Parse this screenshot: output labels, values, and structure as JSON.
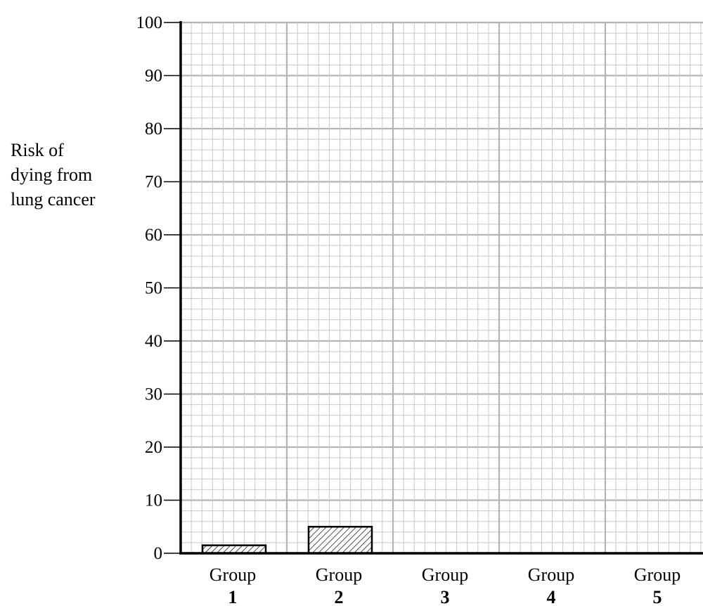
{
  "chart_data": {
    "type": "bar",
    "ylabel_lines": [
      "Risk of",
      "dying from",
      "lung cancer"
    ],
    "categories": [
      {
        "name": "Group",
        "number": "1"
      },
      {
        "name": "Group",
        "number": "2"
      },
      {
        "name": "Group",
        "number": "3"
      },
      {
        "name": "Group",
        "number": "4"
      },
      {
        "name": "Group",
        "number": "5"
      }
    ],
    "values": [
      1.5,
      5,
      null,
      null,
      null
    ],
    "ylim": [
      0,
      100
    ],
    "yticks": [
      0,
      10,
      20,
      30,
      40,
      50,
      60,
      70,
      80,
      90,
      100
    ],
    "grid": true,
    "bar_fill": "diagonal-hatch",
    "colors": {
      "grid_major": "#b4b4b4",
      "grid_minor": "#c8c8c8",
      "axis": "#000000",
      "bar_stroke": "#000000"
    }
  }
}
